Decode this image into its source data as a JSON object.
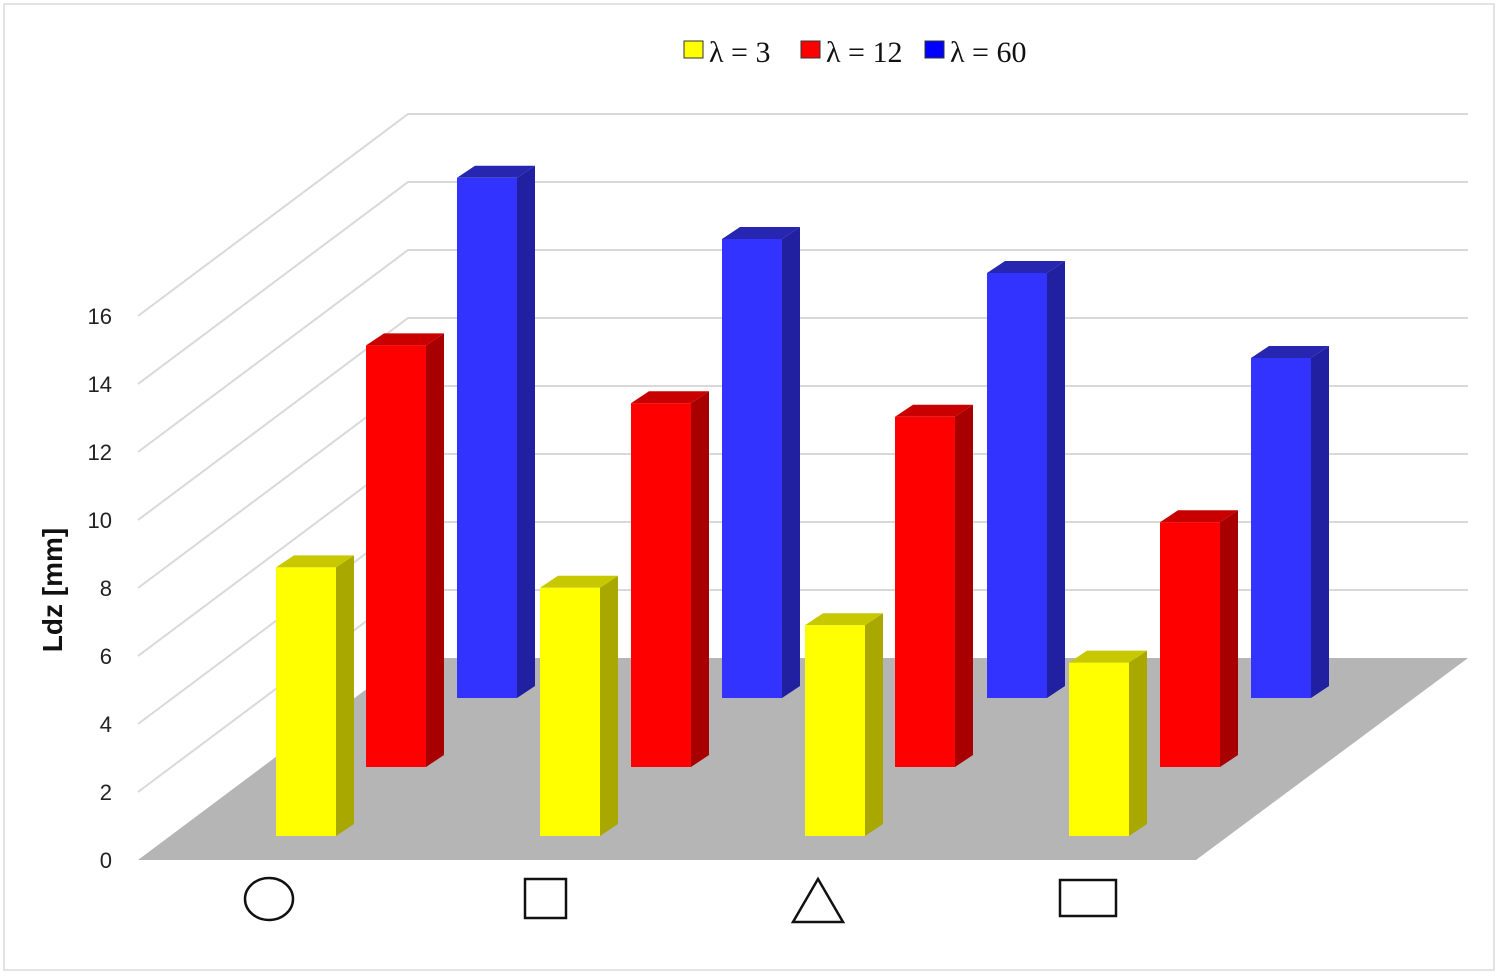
{
  "chart_data": {
    "type": "bar",
    "subtype": "3d-clustered-depth",
    "title": "",
    "xlabel": "",
    "ylabel": "Ldz [mm]",
    "ylim": [
      0,
      16
    ],
    "yticks": [
      0,
      2,
      4,
      6,
      8,
      10,
      12,
      14,
      16
    ],
    "grid": true,
    "legend_position": "top",
    "categories": [
      "circle",
      "square",
      "triangle",
      "rectangle"
    ],
    "category_markers": [
      "circle-icon",
      "square-icon",
      "triangle-icon",
      "rectangle-icon"
    ],
    "series": [
      {
        "name": "λ = 3",
        "color": "#ffff00",
        "values": [
          7.9,
          7.3,
          6.2,
          5.1
        ]
      },
      {
        "name": "λ = 12",
        "color": "#ff0000",
        "values": [
          12.4,
          10.7,
          10.3,
          7.2
        ]
      },
      {
        "name": "λ = 60",
        "color": "#3333ff",
        "values": [
          15.3,
          13.5,
          12.5,
          10.0
        ]
      }
    ]
  },
  "legend": {
    "items": [
      {
        "label": "λ = 3",
        "color": "#ffff00"
      },
      {
        "label": "λ = 12",
        "color": "#ff0000"
      },
      {
        "label": "λ = 60",
        "color": "#0000ff"
      }
    ]
  },
  "axis": {
    "y_title": "Ldz [mm]",
    "y_tick_labels": [
      "0",
      "2",
      "4",
      "6",
      "8",
      "10",
      "12",
      "14",
      "16"
    ]
  },
  "colors": {
    "floor": "#b5b5b5",
    "gridline": "#d9d9d9",
    "yellow_side": "#a8a800",
    "yellow_top": "#c8c800",
    "red_side": "#a80000",
    "red_top": "#c80000",
    "blue_side": "#2020a0",
    "blue_top": "#2626b0"
  }
}
